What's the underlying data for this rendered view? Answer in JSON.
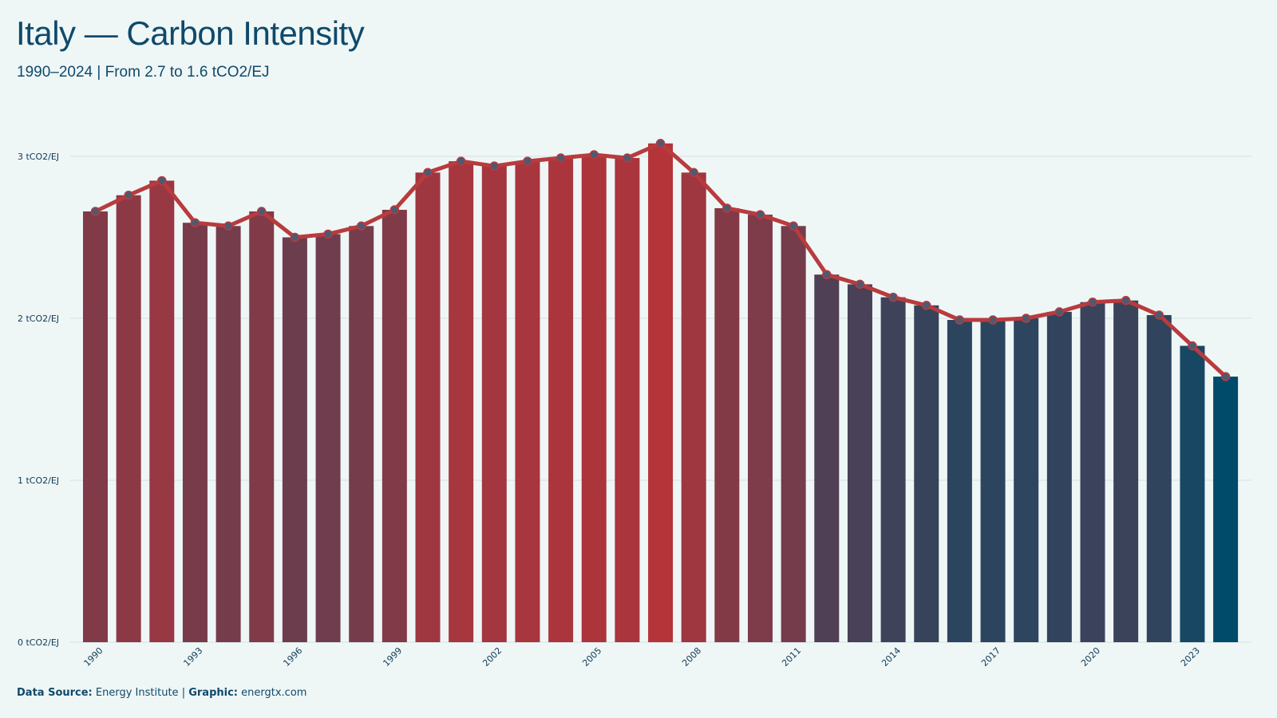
{
  "header": {
    "title": "Italy — Carbon Intensity",
    "subtitle": "1990–2024 | From 2.7 to 1.6 tCO2/EJ"
  },
  "footer": {
    "source_label": "Data Source:",
    "source_value": "Energy Institute",
    "separator": "|",
    "graphic_label": "Graphic:",
    "graphic_value": "energtx.com"
  },
  "colors": {
    "high": "#b5343a",
    "low": "#004a6a",
    "line": "#b83b3e",
    "marker": "#4f5970",
    "grid": "#d3e1e4",
    "axis_text": "#0e3a55"
  },
  "chart_data": {
    "type": "bar",
    "x": [
      1990,
      1991,
      1992,
      1993,
      1994,
      1995,
      1996,
      1997,
      1998,
      1999,
      2000,
      2001,
      2002,
      2003,
      2004,
      2005,
      2006,
      2007,
      2008,
      2009,
      2010,
      2011,
      2012,
      2013,
      2014,
      2015,
      2016,
      2017,
      2018,
      2019,
      2020,
      2021,
      2022,
      2023,
      2024
    ],
    "values": [
      2.66,
      2.76,
      2.85,
      2.59,
      2.57,
      2.66,
      2.5,
      2.52,
      2.57,
      2.67,
      2.9,
      2.97,
      2.94,
      2.97,
      2.99,
      3.01,
      2.99,
      3.08,
      2.9,
      2.68,
      2.64,
      2.57,
      2.27,
      2.21,
      2.13,
      2.08,
      1.99,
      1.99,
      2.0,
      2.04,
      2.1,
      2.11,
      2.02,
      1.83,
      1.64
    ],
    "xticks": [
      "1990",
      "1993",
      "1996",
      "1999",
      "2002",
      "2005",
      "2008",
      "2011",
      "2014",
      "2017",
      "2020",
      "2023"
    ],
    "yticks": [
      0,
      1,
      2,
      3
    ],
    "ytick_labels": [
      "0 tCO2/EJ",
      "1 tCO2/EJ",
      "2 tCO2/EJ",
      "3 tCO2/EJ"
    ],
    "ylim": [
      0,
      3.1
    ],
    "grid": true,
    "overlay": "line-with-markers"
  }
}
